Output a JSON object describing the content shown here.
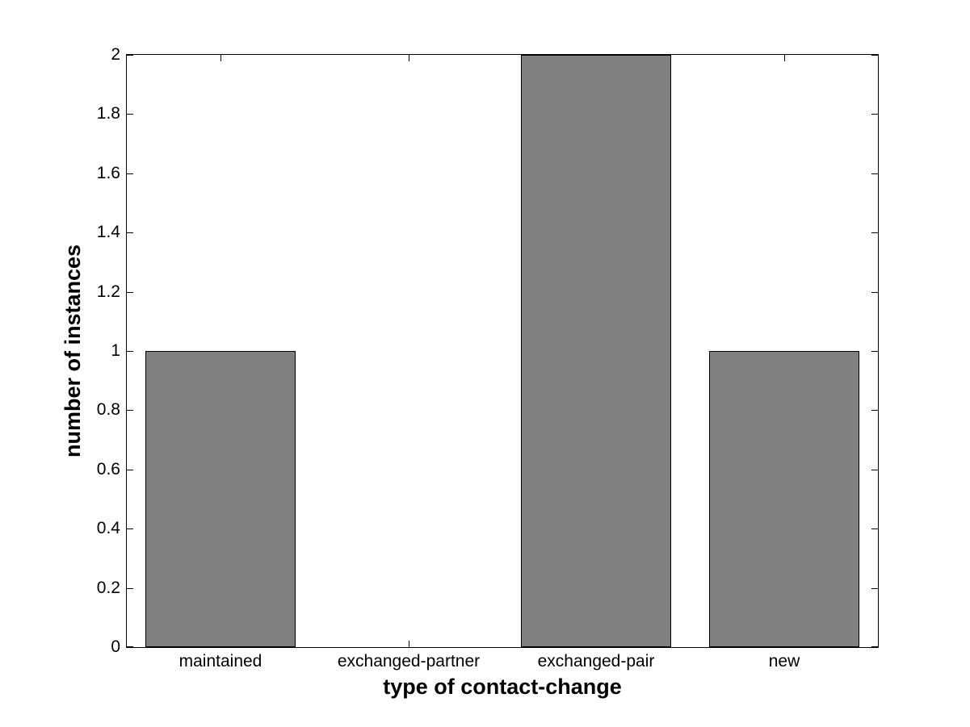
{
  "chart_data": {
    "type": "bar",
    "categories": [
      "maintained",
      "exchanged-partner",
      "exchanged-pair",
      "new"
    ],
    "values": [
      1,
      0,
      2,
      1
    ],
    "title": "",
    "xlabel": "type of contact-change",
    "ylabel": "number of instances",
    "ylim": [
      0,
      2
    ],
    "yticks": [
      0,
      0.2,
      0.4,
      0.6,
      0.8,
      1,
      1.2,
      1.4,
      1.6,
      1.8,
      2
    ],
    "ytick_labels": [
      "0",
      "0.2",
      "0.4",
      "0.6",
      "0.8",
      "1",
      "1.2",
      "1.4",
      "1.6",
      "1.8",
      "2"
    ],
    "bar_width_fraction": 0.8,
    "grid": false,
    "legend": null,
    "colors": {
      "bar_fill": "#808080",
      "bar_edge": "#000000",
      "axis_line": "#000000",
      "text": "#000000",
      "background": "#ffffff"
    }
  }
}
